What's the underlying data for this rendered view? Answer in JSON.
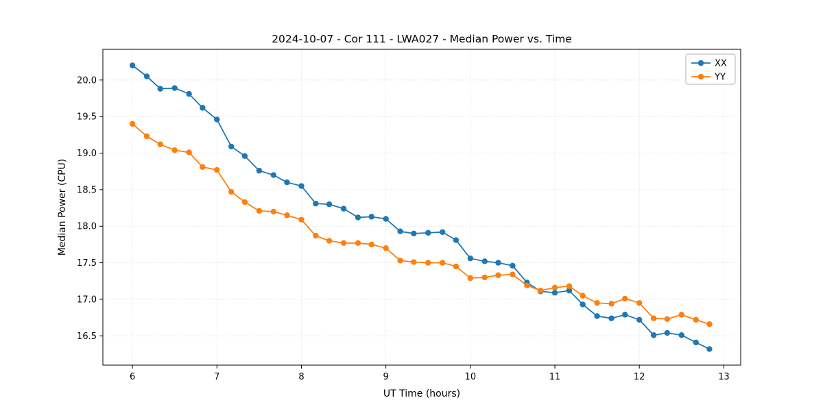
{
  "chart_data": {
    "type": "line",
    "title": "2024-10-07 - Cor 111 - LWA027 - Median Power vs. Time",
    "xlabel": "UT Time (hours)",
    "ylabel": "Median Power (CPU)",
    "xlim": [
      5.65,
      13.2
    ],
    "ylim": [
      16.1,
      20.42
    ],
    "xticks": [
      6,
      7,
      8,
      9,
      10,
      11,
      12,
      13
    ],
    "yticks": [
      16.5,
      17.0,
      17.5,
      18.0,
      18.5,
      19.0,
      19.5,
      20.0
    ],
    "grid": true,
    "legend_position": "upper right",
    "x": [
      6.0,
      6.17,
      6.33,
      6.5,
      6.67,
      6.83,
      7.0,
      7.17,
      7.33,
      7.5,
      7.67,
      7.83,
      8.0,
      8.17,
      8.33,
      8.5,
      8.67,
      8.83,
      9.0,
      9.17,
      9.33,
      9.5,
      9.67,
      9.83,
      10.0,
      10.17,
      10.33,
      10.5,
      10.67,
      10.83,
      11.0,
      11.17,
      11.33,
      11.5,
      11.67,
      11.83,
      12.0,
      12.17,
      12.33,
      12.5,
      12.67,
      12.83
    ],
    "series": [
      {
        "name": "XX",
        "color": "#1f77b4",
        "values": [
          20.2,
          20.05,
          19.88,
          19.89,
          19.81,
          19.62,
          19.46,
          19.09,
          18.96,
          18.76,
          18.7,
          18.6,
          18.55,
          18.31,
          18.3,
          18.24,
          18.12,
          18.13,
          18.1,
          17.93,
          17.9,
          17.91,
          17.92,
          17.81,
          17.56,
          17.52,
          17.5,
          17.46,
          17.23,
          17.11,
          17.09,
          17.12,
          16.93,
          16.77,
          16.74,
          16.79,
          16.72,
          16.51,
          16.54,
          16.51,
          16.41,
          16.32
        ]
      },
      {
        "name": "YY",
        "color": "#ff7f0e",
        "values": [
          19.4,
          19.23,
          19.12,
          19.04,
          19.01,
          18.81,
          18.77,
          18.47,
          18.33,
          18.21,
          18.2,
          18.15,
          18.09,
          17.87,
          17.8,
          17.77,
          17.77,
          17.75,
          17.7,
          17.53,
          17.51,
          17.5,
          17.5,
          17.45,
          17.29,
          17.3,
          17.33,
          17.34,
          17.19,
          17.12,
          17.16,
          17.18,
          17.05,
          16.95,
          16.94,
          17.01,
          16.95,
          16.74,
          16.73,
          16.79,
          16.72,
          16.66
        ]
      }
    ]
  }
}
